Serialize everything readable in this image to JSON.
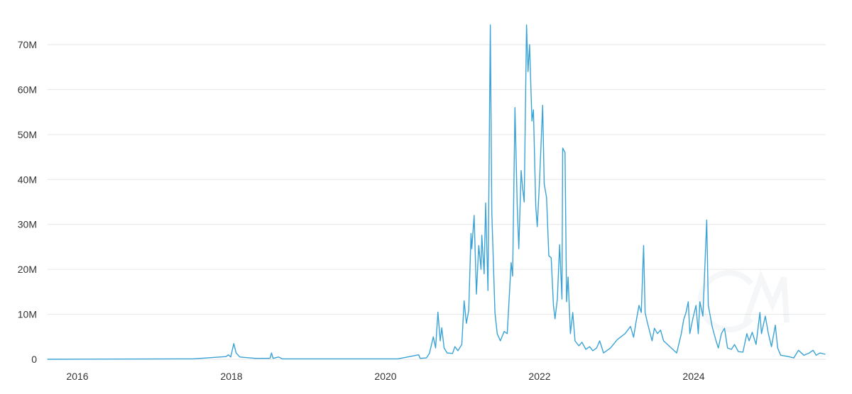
{
  "chart_data": {
    "type": "line",
    "title": "",
    "xlabel": "",
    "ylabel": "",
    "xlim": [
      2015.61,
      2025.71
    ],
    "ylim": [
      0,
      70000000.0
    ],
    "grid": true,
    "legend": "none",
    "x_ticks": [
      {
        "value": 2016,
        "label": "2016"
      },
      {
        "value": 2018,
        "label": "2018"
      },
      {
        "value": 2020,
        "label": "2020"
      },
      {
        "value": 2022,
        "label": "2022"
      },
      {
        "value": 2024,
        "label": "2024"
      }
    ],
    "y_ticks": [
      {
        "value": 0,
        "label": "0"
      },
      {
        "value": 10000000.0,
        "label": "10M"
      },
      {
        "value": 20000000.0,
        "label": "20M"
      },
      {
        "value": 30000000.0,
        "label": "30M"
      },
      {
        "value": 40000000.0,
        "label": "40M"
      },
      {
        "value": 50000000.0,
        "label": "50M"
      },
      {
        "value": 60000000.0,
        "label": "60M"
      },
      {
        "value": 70000000.0,
        "label": "70M"
      }
    ],
    "line_color": "#3aa3d6",
    "watermark_logo_text": "CM",
    "series": [
      {
        "x": [
          2015.61,
          2017.5,
          2017.93,
          2017.96,
          2017.99,
          2018.03,
          2018.06,
          2018.11,
          2018.31,
          2018.5,
          2018.52,
          2018.54,
          2018.61,
          2018.66,
          2020.16,
          2020.43,
          2020.45,
          2020.53,
          2020.57,
          2020.62,
          2020.65,
          2020.68,
          2020.71,
          2020.73,
          2020.76,
          2020.8,
          2020.87,
          2020.9,
          2020.94,
          2020.99,
          2021.02,
          2021.05,
          2021.08,
          2021.11,
          2021.12,
          2021.15,
          2021.18,
          2021.21,
          2021.24,
          2021.25,
          2021.28,
          2021.3,
          2021.33,
          2021.36,
          2021.38,
          2021.42,
          2021.45,
          2021.49,
          2021.54,
          2021.58,
          2021.6,
          2021.63,
          2021.65,
          2021.68,
          2021.71,
          2021.73,
          2021.76,
          2021.78,
          2021.8,
          2021.83,
          2021.85,
          2021.87,
          2021.9,
          2021.92,
          2021.95,
          2021.97,
          2022.0,
          2022.04,
          2022.06,
          2022.09,
          2022.12,
          2022.15,
          2022.18,
          2022.2,
          2022.23,
          2022.26,
          2022.29,
          2022.3,
          2022.33,
          2022.35,
          2022.37,
          2022.4,
          2022.43,
          2022.46,
          2022.51,
          2022.55,
          2022.6,
          2022.65,
          2022.69,
          2022.74,
          2022.78,
          2022.83,
          2022.92,
          2023.01,
          2023.11,
          2023.18,
          2023.22,
          2023.25,
          2023.29,
          2023.32,
          2023.35,
          2023.37,
          2023.4,
          2023.46,
          2023.49,
          2023.53,
          2023.57,
          2023.61,
          2023.71,
          2023.78,
          2023.84,
          2023.87,
          2023.9,
          2023.93,
          2023.95,
          2023.99,
          2024.03,
          2024.06,
          2024.08,
          2024.12,
          2024.17,
          2024.19,
          2024.24,
          2024.29,
          2024.32,
          2024.36,
          2024.4,
          2024.44,
          2024.49,
          2024.53,
          2024.58,
          2024.64,
          2024.69,
          2024.72,
          2024.76,
          2024.81,
          2024.86,
          2024.88,
          2024.93,
          2024.97,
          2025.01,
          2025.06,
          2025.09,
          2025.13,
          2025.23,
          2025.3,
          2025.36,
          2025.43,
          2025.5,
          2025.55,
          2025.59,
          2025.64,
          2025.71
        ],
        "y": [
          0,
          100000.0,
          600000.0,
          1000000.0,
          500000.0,
          3500000.0,
          1400000.0,
          500000.0,
          200000.0,
          200000.0,
          1400000.0,
          200000.0,
          500000.0,
          100000.0,
          100000.0,
          1000000.0,
          200000.0,
          300000.0,
          1300000.0,
          5000000.0,
          2500000.0,
          10500000.0,
          4100000.0,
          7000000.0,
          2500000.0,
          1400000.0,
          1300000.0,
          2800000.0,
          1900000.0,
          3300000.0,
          13000000.0,
          8000000.0,
          10900000.0,
          28000000.0,
          24600000.0,
          32000000.0,
          14500000.0,
          25300000.0,
          20000000.0,
          27600000.0,
          19000000.0,
          34800000.0,
          15300000.0,
          74400000.0,
          32600000.0,
          10400000.0,
          5700000.0,
          4100000.0,
          6200000.0,
          5700000.0,
          12000000.0,
          21500000.0,
          18500000.0,
          56000000.0,
          34000000.0,
          24600000.0,
          42000000.0,
          38000000.0,
          35000000.0,
          74400000.0,
          64000000.0,
          70000000.0,
          53000000.0,
          55500000.0,
          34000000.0,
          29500000.0,
          40000000.0,
          56500000.0,
          39000000.0,
          36000000.0,
          23000000.0,
          22600000.0,
          12000000.0,
          9000000.0,
          13400000.0,
          25500000.0,
          13400000.0,
          47000000.0,
          46000000.0,
          12800000.0,
          18300000.0,
          5700000.0,
          10400000.0,
          4100000.0,
          3000000.0,
          3800000.0,
          2200000.0,
          2800000.0,
          1900000.0,
          2500000.0,
          4100000.0,
          1400000.0,
          2500000.0,
          4400000.0,
          5700000.0,
          7300000.0,
          4900000.0,
          8100000.0,
          12000000.0,
          10400000.0,
          25300000.0,
          10400000.0,
          8100000.0,
          4100000.0,
          6900000.0,
          5700000.0,
          6500000.0,
          4100000.0,
          2500000.0,
          1400000.0,
          5700000.0,
          8800000.0,
          10400000.0,
          12800000.0,
          5700000.0,
          9100000.0,
          12000000.0,
          5700000.0,
          12800000.0,
          9600000.0,
          31000000.0,
          12000000.0,
          7300000.0,
          4100000.0,
          2500000.0,
          5700000.0,
          6900000.0,
          2500000.0,
          2200000.0,
          3300000.0,
          1700000.0,
          1600000.0,
          5700000.0,
          4100000.0,
          6000000.0,
          3300000.0,
          10400000.0,
          5700000.0,
          9600000.0,
          5700000.0,
          2800000.0,
          7600000.0,
          2500000.0,
          900000.0,
          600000.0,
          300000.0,
          2000000.0,
          900000.0,
          1400000.0,
          2000000.0,
          900000.0,
          1400000.0,
          1100000.0
        ]
      }
    ]
  }
}
